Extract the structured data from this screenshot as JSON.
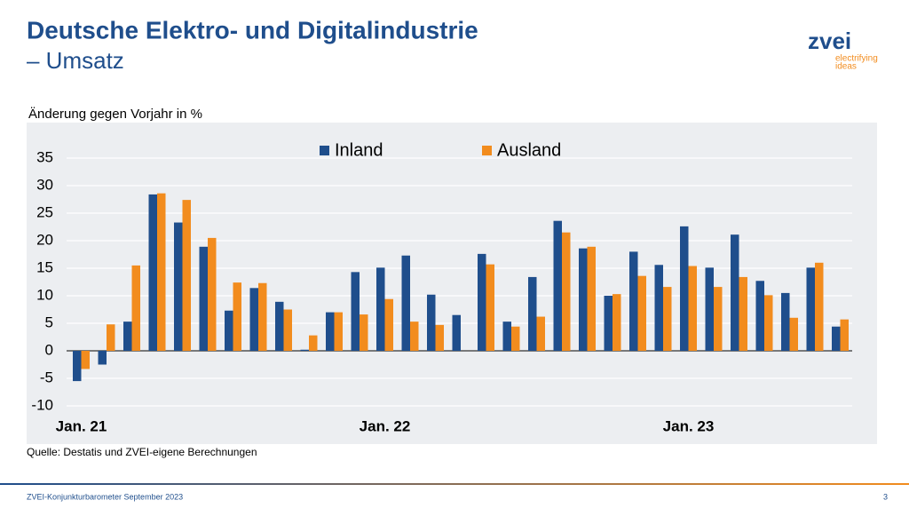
{
  "header": {
    "title": "Deutsche Elektro- und Digitalindustrie",
    "subtitle": "– Umsatz",
    "logo": "zvei",
    "tagline_1": "electrifying",
    "tagline_2": "ideas"
  },
  "chart_data": {
    "type": "bar",
    "ylabel": "Änderung gegen Vorjahr in %",
    "categories": [
      "Jan. 21",
      null,
      null,
      null,
      null,
      null,
      null,
      null,
      null,
      null,
      null,
      null,
      "Jan. 22",
      null,
      null,
      null,
      null,
      null,
      null,
      null,
      null,
      null,
      null,
      null,
      "Jan. 23",
      null,
      null,
      null,
      null,
      null,
      null
    ],
    "series": [
      {
        "name": "Inland",
        "color": "#1f4e8c",
        "values": [
          -5.5,
          -2.5,
          5.3,
          28.4,
          23.3,
          18.9,
          7.3,
          11.4,
          8.9,
          0.2,
          7.0,
          14.3,
          15.1,
          17.3,
          10.2,
          6.5,
          17.6,
          5.3,
          13.4,
          23.6,
          18.6,
          10.0,
          18.0,
          15.6,
          22.6,
          15.1,
          21.1,
          12.7,
          10.5,
          15.1,
          4.4
        ]
      },
      {
        "name": "Ausland",
        "color": "#f28c1e",
        "values": [
          -3.3,
          4.8,
          15.5,
          28.6,
          27.4,
          20.5,
          12.4,
          12.3,
          7.5,
          2.8,
          7.0,
          6.6,
          9.4,
          5.3,
          4.7,
          null,
          15.7,
          4.4,
          6.2,
          21.5,
          18.9,
          10.3,
          13.6,
          11.6,
          15.4,
          11.6,
          13.4,
          10.1,
          6.0,
          16.0,
          5.7
        ]
      }
    ],
    "ylim": [
      -10,
      35
    ],
    "yticks": [
      -10,
      -5,
      0,
      5,
      10,
      15,
      20,
      25,
      30,
      35
    ],
    "grid": true,
    "source": "Quelle: Destatis und ZVEI-eigene Berechnungen"
  },
  "footer": {
    "text": "ZVEI-Konjunkturbarometer September 2023",
    "page": "3"
  }
}
